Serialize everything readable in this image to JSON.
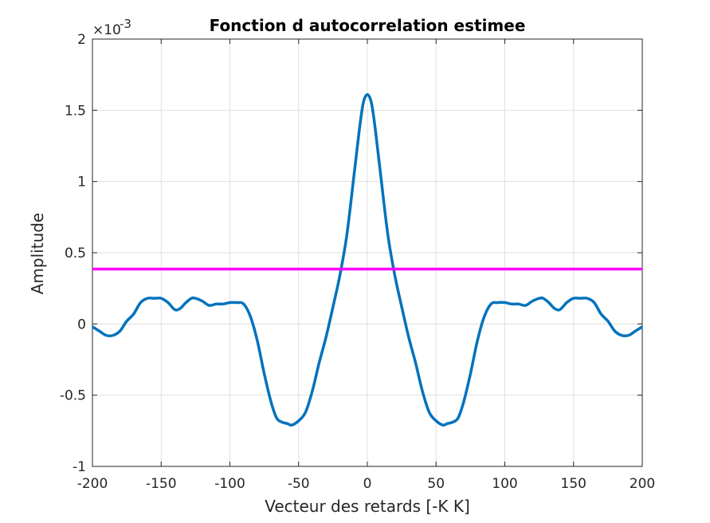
{
  "chart_data": {
    "type": "line",
    "title": "Fonction d autocorrelation estimee",
    "xlabel": "Vecteur des retards [-K K]",
    "ylabel": "Amplitude",
    "y_exponent": {
      "base": "×10",
      "power": "-3"
    },
    "xlim": [
      -200,
      200
    ],
    "ylim": [
      -1,
      2
    ],
    "xticks": [
      -200,
      -150,
      -100,
      -50,
      0,
      50,
      100,
      150,
      200
    ],
    "xtick_labels": [
      "-200",
      "-150",
      "-100",
      "-50",
      "0",
      "50",
      "100",
      "150",
      "200"
    ],
    "yticks": [
      -1,
      -0.5,
      0,
      0.5,
      1,
      1.5,
      2
    ],
    "ytick_labels": [
      "-1",
      "-0.5",
      "0",
      "0.5",
      "1",
      "1.5",
      "2"
    ],
    "grid": true,
    "series": [
      {
        "color": "#0072bd",
        "x": [
          0,
          3,
          6,
          10,
          15,
          20,
          25,
          30,
          35,
          40,
          45,
          50,
          55,
          58,
          62,
          66,
          70,
          75,
          80,
          85,
          90,
          95,
          100,
          105,
          110,
          115,
          120,
          125,
          128,
          132,
          136,
          140,
          145,
          150,
          155,
          160,
          165,
          170,
          175,
          180,
          185,
          190,
          195,
          200
        ],
        "y": [
          1.61,
          1.55,
          1.35,
          1.02,
          0.62,
          0.34,
          0.12,
          -0.09,
          -0.27,
          -0.47,
          -0.62,
          -0.68,
          -0.71,
          -0.7,
          -0.69,
          -0.66,
          -0.55,
          -0.35,
          -0.12,
          0.05,
          0.14,
          0.15,
          0.15,
          0.14,
          0.14,
          0.13,
          0.16,
          0.18,
          0.18,
          0.15,
          0.11,
          0.1,
          0.15,
          0.18,
          0.18,
          0.18,
          0.15,
          0.07,
          0.02,
          -0.05,
          -0.08,
          -0.08,
          -0.05,
          -0.02
        ],
        "symmetric": true
      },
      {
        "color": "#ff00ff",
        "x": [
          -200,
          200
        ],
        "y": [
          0.385,
          0.385
        ]
      }
    ]
  }
}
